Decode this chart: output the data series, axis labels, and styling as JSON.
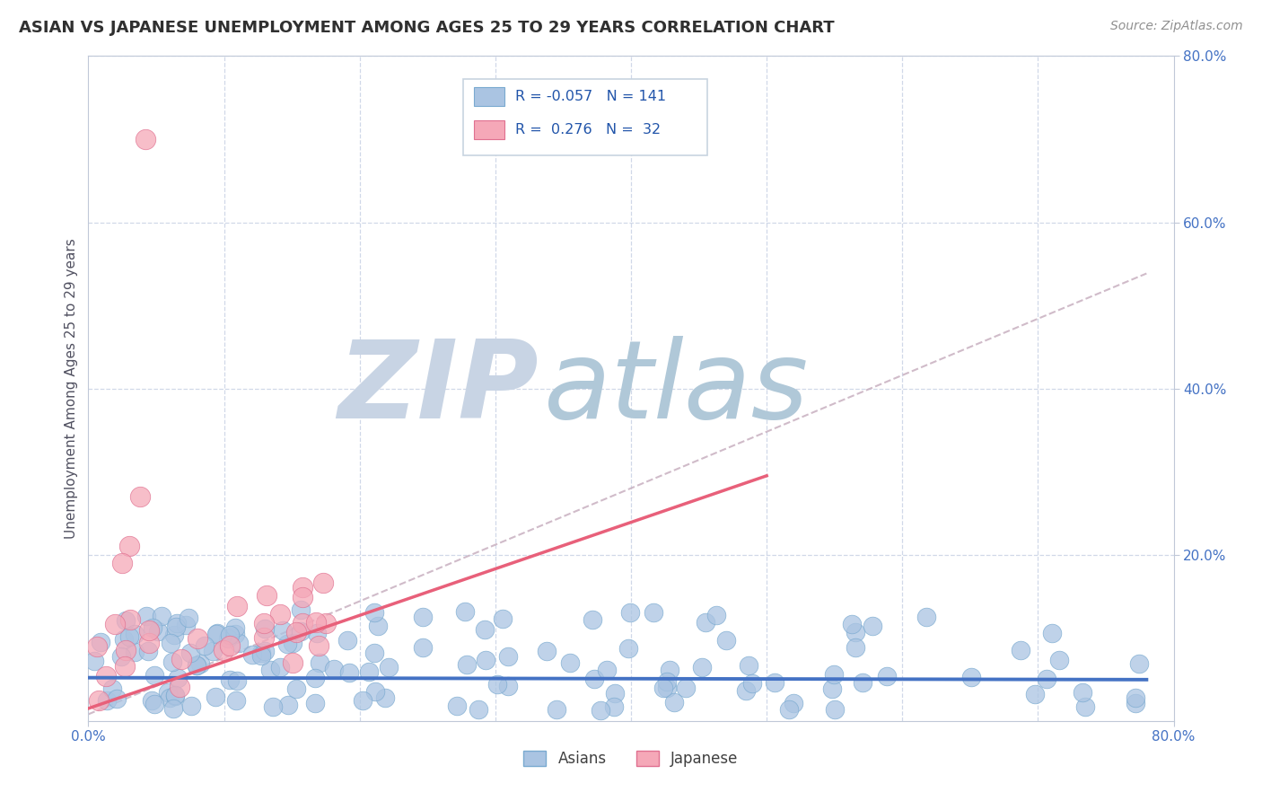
{
  "title": "ASIAN VS JAPANESE UNEMPLOYMENT AMONG AGES 25 TO 29 YEARS CORRELATION CHART",
  "source_text": "Source: ZipAtlas.com",
  "ylabel": "Unemployment Among Ages 25 to 29 years",
  "xlim": [
    0.0,
    0.8
  ],
  "ylim": [
    0.0,
    0.8
  ],
  "asian_color": "#aac4e2",
  "asian_edge_color": "#7aaad0",
  "japanese_color": "#f5a8b8",
  "japanese_edge_color": "#e07090",
  "asian_line_color": "#4472c4",
  "japanese_line_color": "#e8607a",
  "dashed_line_color": "#c8b0c0",
  "legend_asian_R": "-0.057",
  "legend_asian_N": "141",
  "legend_japanese_R": "0.276",
  "legend_japanese_N": "32",
  "watermark_zip": "ZIP",
  "watermark_atlas": "atlas",
  "watermark_color_zip": "#c8d4e4",
  "watermark_color_atlas": "#b0c8d8",
  "background_color": "#ffffff",
  "grid_color": "#d0d8e8",
  "title_color": "#303030",
  "label_color": "#4472c4",
  "right_ytick_labels": [
    "80.0%",
    "60.0%",
    "40.0%",
    "20.0%"
  ],
  "right_ytick_values": [
    0.8,
    0.6,
    0.4,
    0.2
  ]
}
